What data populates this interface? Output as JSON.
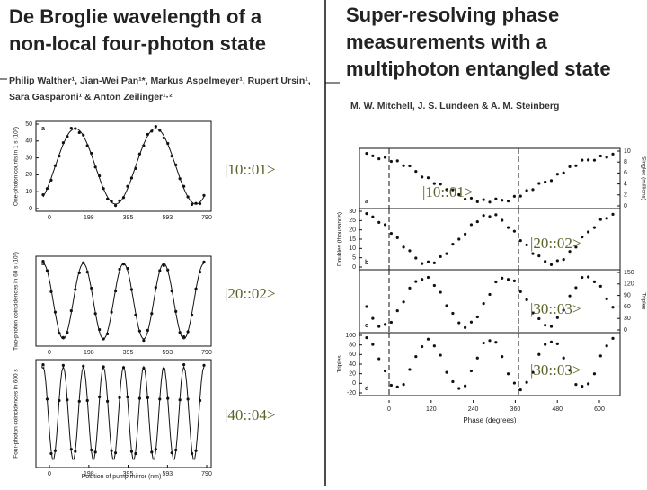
{
  "left": {
    "title": [
      "De Broglie wavelength of a",
      "non-local four-photon state"
    ],
    "authors": [
      "Philip Walther¹, Jian-Wei Pan¹*, Markus Aspelmeyer¹, Rupert Ursin¹,",
      "Sara Gasparoni¹ & Anton Zeilinger¹·²"
    ],
    "panels": [
      {
        "letter": "a",
        "ylabel": "One-photon counts in 1 s (10³)",
        "yticks": [
          0,
          10,
          20,
          30,
          40,
          50
        ]
      },
      {
        "letter": "b",
        "ylabel": "Two-photon coincidences in 60 s (10³)"
      },
      {
        "letter": "c",
        "ylabel": "Four-photon coincidences in 600 s"
      }
    ],
    "xticks": [
      0,
      198,
      395,
      593,
      790
    ],
    "xlabel": "Position of pump mirror (nm)"
  },
  "right": {
    "title": [
      "Super-resolving phase",
      "measurements with a",
      "multiphoton entangled state"
    ],
    "authors": "M. W. Mitchell, J. S. Lundeen & A. M. Steinberg",
    "panels": [
      {
        "letter": "a",
        "ylabel": "Singles (millions)",
        "yticks": [
          0,
          2,
          4,
          6,
          8,
          10
        ]
      },
      {
        "letter": "b",
        "ylabel": "Doubles (thousands)",
        "yticks": [
          0,
          5,
          10,
          15,
          20,
          25,
          30
        ]
      },
      {
        "letter": "c",
        "ylabel": "Triples",
        "yticks": [
          0,
          30,
          60,
          90,
          120,
          150
        ]
      },
      {
        "letter": "d",
        "ylabel": "Triples",
        "yticks": [
          -20,
          0,
          20,
          40,
          60,
          80,
          100
        ]
      }
    ],
    "xticks": [
      0,
      120,
      240,
      360,
      480,
      600
    ],
    "xlabel": "Phase (degrees)"
  },
  "annotations": [
    "|10::01>",
    "|10::01>",
    "|20::02>",
    "|20::02>",
    "|30::03>",
    "|30::03>",
    "|40::04>"
  ]
}
